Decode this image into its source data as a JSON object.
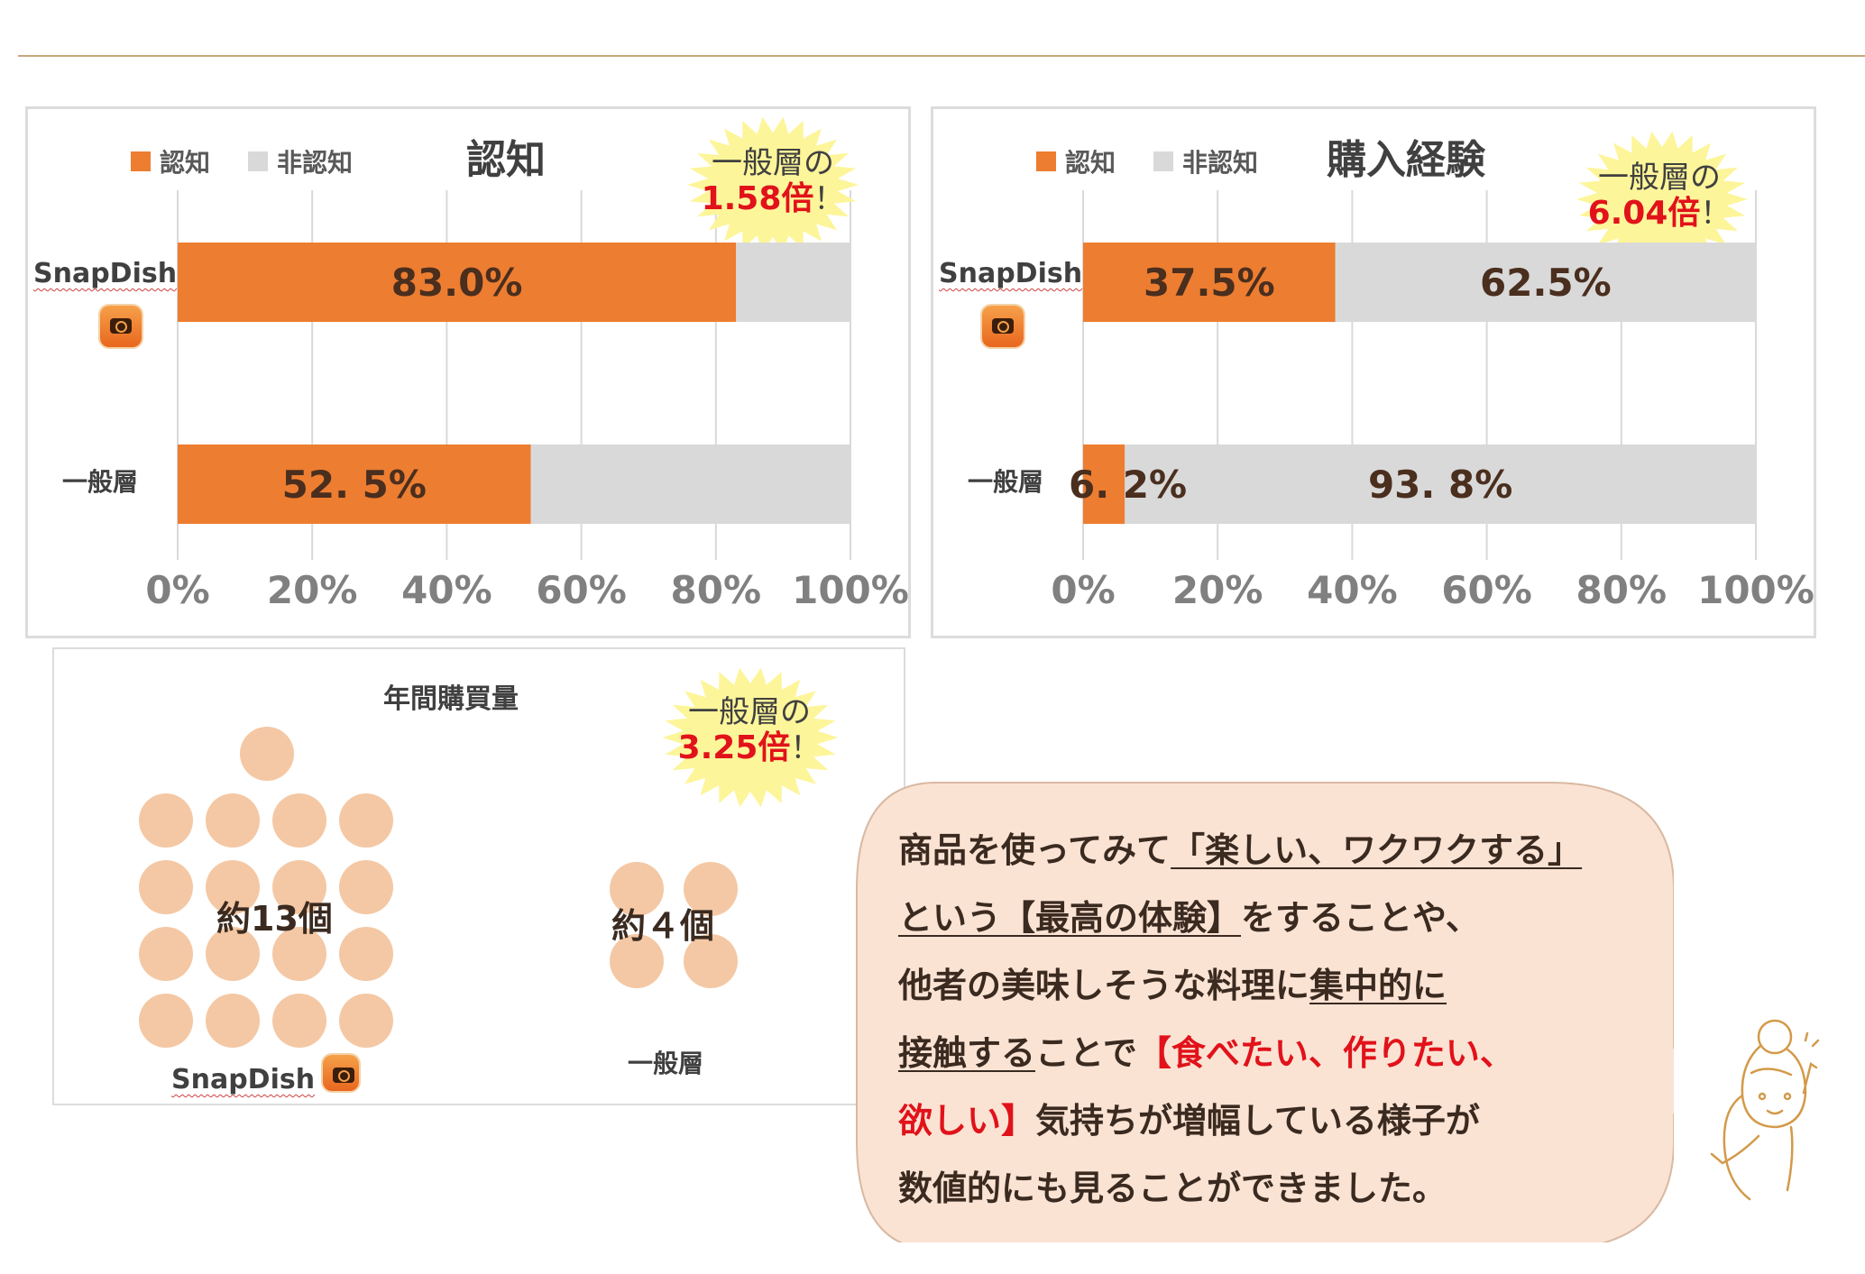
{
  "colors": {
    "aware": "#ed7d31",
    "unaware": "#d9d9d9",
    "dot": "#f4c8a4",
    "accent_red": "#e1121a",
    "bubble_bg": "#fbe3d4"
  },
  "icons": {
    "app": "camera-app-icon",
    "illustration": "woman-illustration"
  },
  "legend": {
    "aware": "認知",
    "unaware": "非認知"
  },
  "chart_data": [
    {
      "type": "bar",
      "stacked": true,
      "orientation": "horizontal",
      "title": "認知",
      "categories": [
        "SnapDish",
        "一般層"
      ],
      "series": [
        {
          "name": "認知",
          "values": [
            83.0,
            52.5
          ],
          "labels": [
            "83.0%",
            "52. 5%"
          ]
        },
        {
          "name": "非認知",
          "values": [
            17.0,
            47.5
          ],
          "labels": [
            "",
            ""
          ]
        }
      ],
      "xticks": [
        "0%",
        "20%",
        "40%",
        "60%",
        "80%",
        "100%"
      ],
      "xlim": [
        0,
        100
      ],
      "grid": true,
      "legend": "top-left",
      "callout": {
        "line1": "一般層の",
        "mult": "1.58倍",
        "excl": "！"
      }
    },
    {
      "type": "bar",
      "stacked": true,
      "orientation": "horizontal",
      "title": "購入経験",
      "categories": [
        "SnapDish",
        "一般層"
      ],
      "series": [
        {
          "name": "認知",
          "values": [
            37.5,
            6.2
          ],
          "labels": [
            "37.5%",
            "6. 2%"
          ]
        },
        {
          "name": "非認知",
          "values": [
            62.5,
            93.8
          ],
          "labels": [
            "62.5%",
            "93. 8%"
          ]
        }
      ],
      "xticks": [
        "0%",
        "20%",
        "40%",
        "60%",
        "80%",
        "100%"
      ],
      "xlim": [
        0,
        100
      ],
      "grid": true,
      "legend": "top-left",
      "callout": {
        "line1": "一般層の",
        "mult": "6.04倍",
        "excl": "！"
      }
    },
    {
      "type": "pictogram",
      "title": "年間購買量",
      "categories": [
        "SnapDish",
        "一般層"
      ],
      "values": [
        13,
        4
      ],
      "labels": [
        "約13個",
        "約４個"
      ],
      "callout": {
        "line1": "一般層の",
        "mult": "3.25倍",
        "excl": "！"
      }
    }
  ],
  "message": {
    "l1a": "商品を使ってみて",
    "l1b": "「楽しい、ワクワクする」",
    "l2a": "という【最高の体験】",
    "l2b": "をすることや、",
    "l3a": "他者の美味しそうな料理に",
    "l3b": "集中的に",
    "l4a": "接触する",
    "l4b": "ことで",
    "l4c": "【食べたい、作りたい、",
    "l5a": "欲しい】",
    "l5b": "気持ちが増幅している様子が",
    "l6": "数値的にも見ることができました。"
  }
}
